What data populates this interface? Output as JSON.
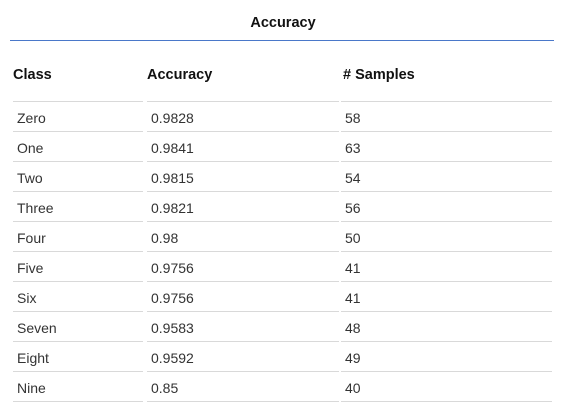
{
  "table": {
    "title": "Accuracy",
    "columns": [
      "Class",
      "Accuracy",
      "# Samples"
    ],
    "rows": [
      [
        "Zero",
        "0.9828",
        "58"
      ],
      [
        "One",
        "0.9841",
        "63"
      ],
      [
        "Two",
        "0.9815",
        "54"
      ],
      [
        "Three",
        "0.9821",
        "56"
      ],
      [
        "Four",
        "0.98",
        "50"
      ],
      [
        "Five",
        "0.9756",
        "41"
      ],
      [
        "Six",
        "0.9756",
        "41"
      ],
      [
        "Seven",
        "0.9583",
        "48"
      ],
      [
        "Eight",
        "0.9592",
        "49"
      ],
      [
        "Nine",
        "0.85",
        "40"
      ]
    ]
  },
  "colors": {
    "title_rule": "#4a78c9",
    "row_divider": "#d9d9d9"
  }
}
